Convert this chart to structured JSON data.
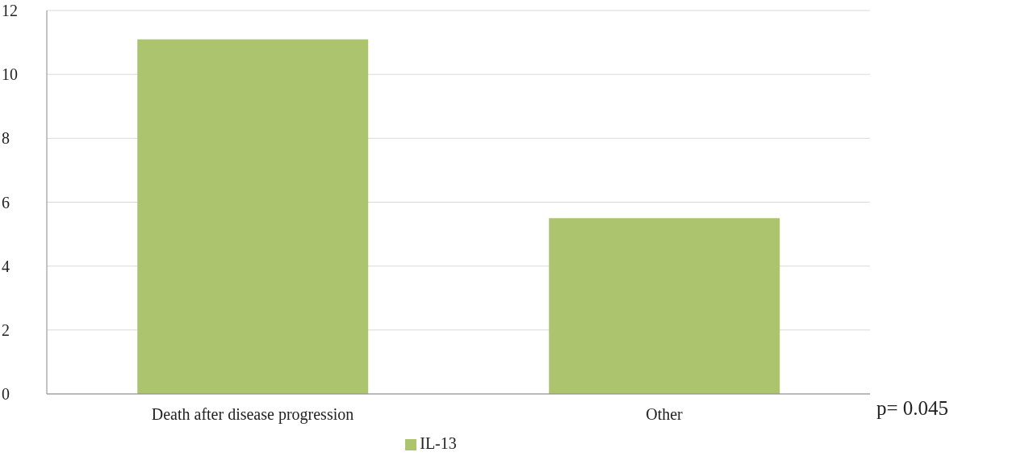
{
  "chart_data": {
    "type": "bar",
    "categories": [
      "Death after disease progression",
      "Other"
    ],
    "series": [
      {
        "name": "IL-13",
        "color": "#acc46e",
        "values": [
          11.1,
          5.5
        ]
      }
    ],
    "ylim": [
      0,
      12
    ],
    "yticks": [
      0,
      2,
      4,
      6,
      8,
      10,
      12
    ],
    "grid": "y",
    "legend": "bottom",
    "annotations": [
      "p= 0.045"
    ]
  }
}
